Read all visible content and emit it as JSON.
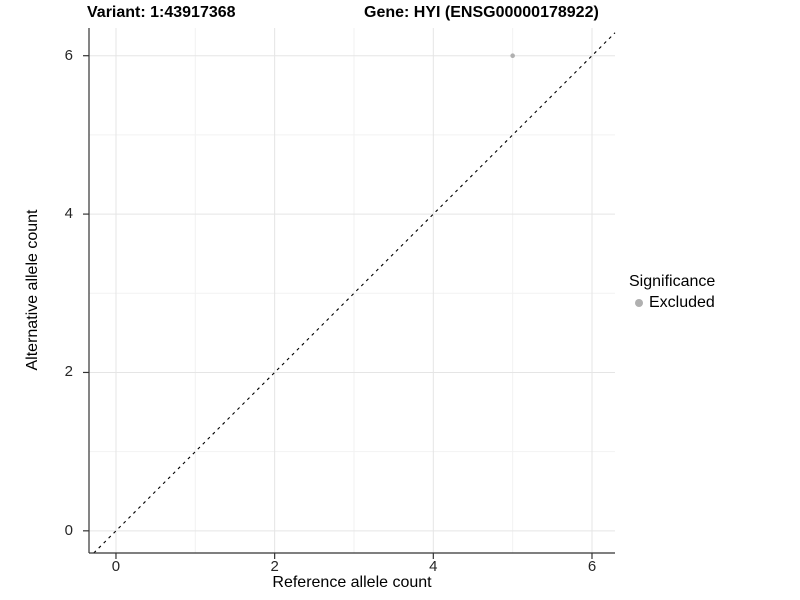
{
  "header": {
    "variant_title": "Variant: 1:43917368",
    "gene_title": "Gene: HYI (ENSG00000178922)"
  },
  "axes": {
    "x": {
      "label": "Reference allele count"
    },
    "y": {
      "label": "Alternative allele count"
    }
  },
  "legend": {
    "title": "Significance",
    "items": [
      {
        "label": "Excluded",
        "color": "#b0b0b0"
      }
    ]
  },
  "chart_data": {
    "type": "scatter",
    "title": "Variant: 1:43917368    Gene: HYI (ENSG00000178922)",
    "xlabel": "Reference allele count",
    "ylabel": "Alternative allele count",
    "xlim": [
      -0.34,
      6.29
    ],
    "ylim": [
      -0.28,
      6.35
    ],
    "xticks": [
      0,
      2,
      4,
      6
    ],
    "yticks": [
      0,
      2,
      4,
      6
    ],
    "xticks_minor": [
      1,
      3,
      5
    ],
    "yticks_minor": [
      1,
      3,
      5
    ],
    "grid": "major and minor gridlines, light gray on white",
    "legend_position": "right",
    "series": [
      {
        "name": "Excluded",
        "color": "#b0b0b0",
        "points": [
          {
            "x": 5,
            "y": 6
          }
        ]
      }
    ],
    "reference_line": {
      "description": "identity line y = x",
      "slope": 1,
      "intercept": 0,
      "style": "dashed",
      "color": "#000000"
    }
  },
  "colors": {
    "background": "#ffffff",
    "axis_line": "#333333",
    "grid_major": "#e5e5e5",
    "grid_minor": "#f2f2f2",
    "tick_label": "#262626",
    "point": "#b0b0b0",
    "dashed_line": "#000000"
  }
}
